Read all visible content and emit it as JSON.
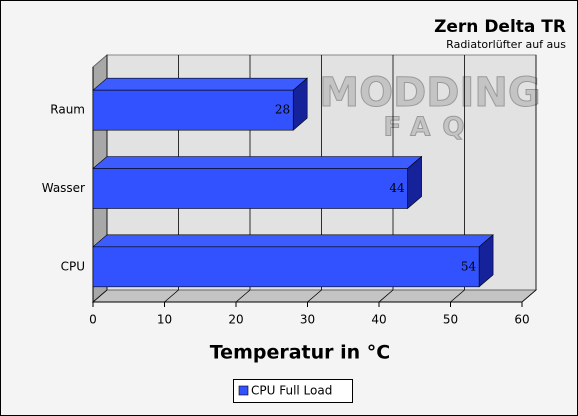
{
  "chart_data": {
    "type": "bar3d_horizontal",
    "title": "Zern Delta TR",
    "subtitle": "Radiatorlüfter auf aus",
    "watermark": [
      "MODDING",
      "FAQ"
    ],
    "categories": [
      "Raum",
      "Wasser",
      "CPU"
    ],
    "series": [
      {
        "name": "CPU Full Load",
        "color": "#3352ff",
        "values": [
          28,
          44,
          54
        ]
      }
    ],
    "x_label": "Temperatur in °C",
    "xlim": [
      0,
      60
    ],
    "xticks": [
      0,
      10,
      20,
      30,
      40,
      50,
      60
    ],
    "grid": true,
    "legend": "bottom"
  }
}
